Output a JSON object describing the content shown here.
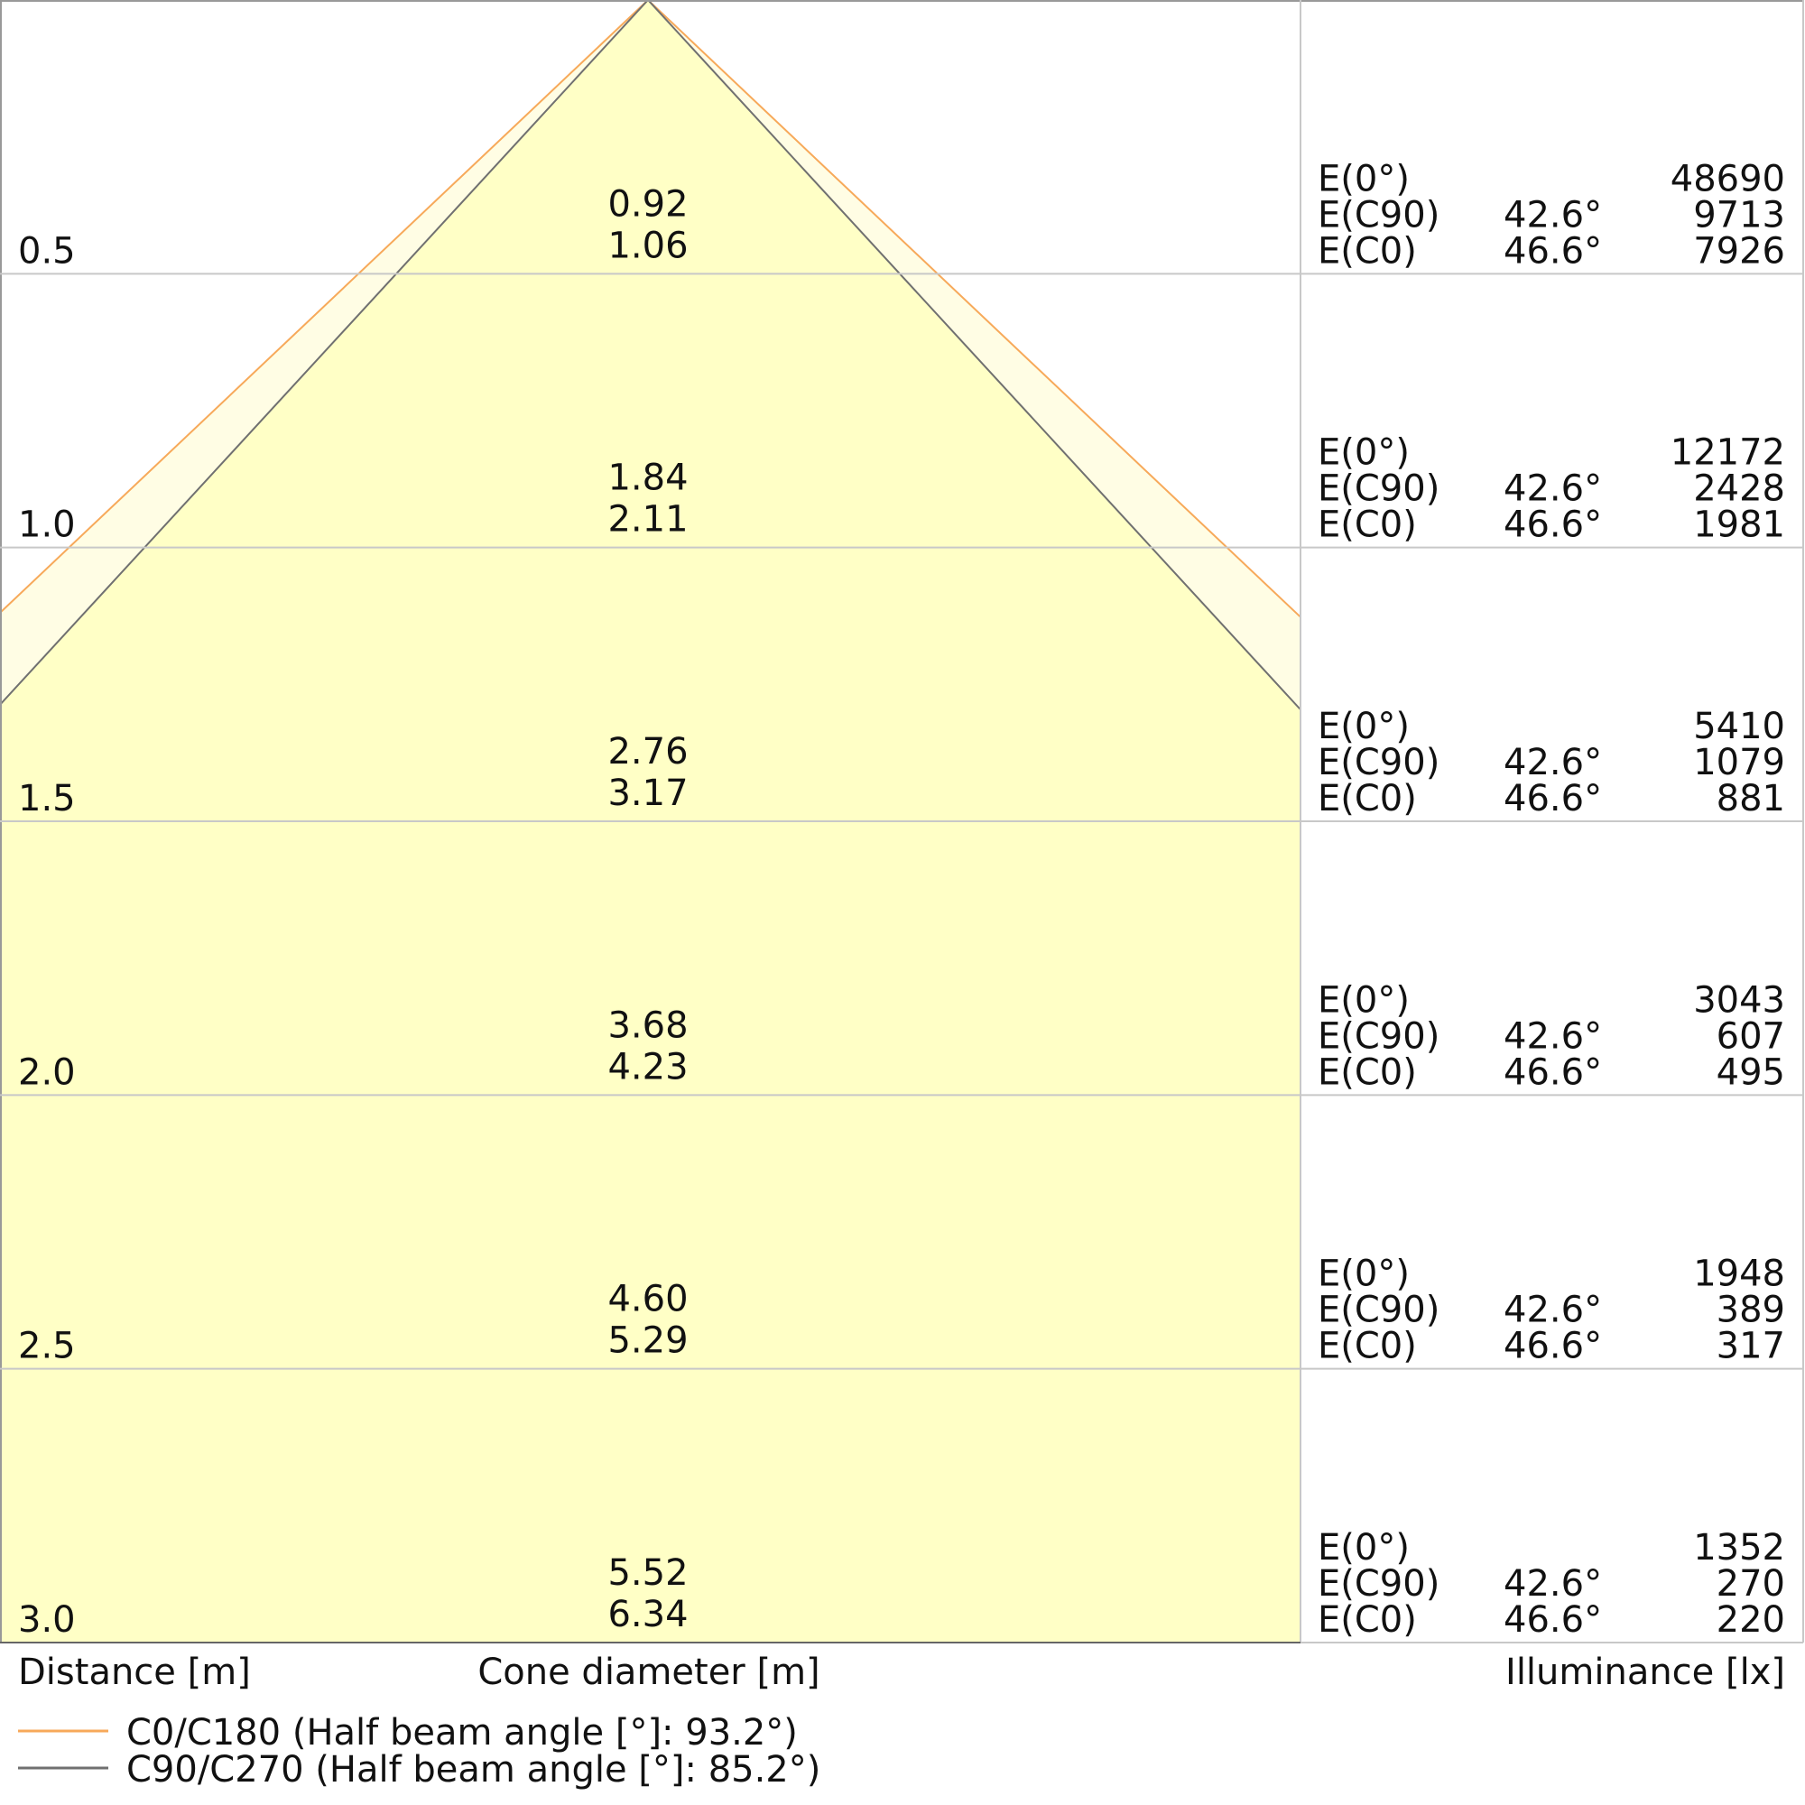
{
  "chart_data": {
    "type": "cone-diagram",
    "xlabel_left": "Distance [m]",
    "xlabel_center": "Cone diameter [m]",
    "xlabel_right": "Illuminance [lx]",
    "distance_range": [
      0,
      3.0
    ],
    "distances": [
      "0.5",
      "1.0",
      "1.5",
      "2.0",
      "2.5",
      "3.0"
    ],
    "rows": [
      {
        "distance": "0.5",
        "diam_c90": "0.92",
        "diam_c0": "1.06",
        "e0": "48690",
        "ec90": "9713",
        "ec0": "7926"
      },
      {
        "distance": "1.0",
        "diam_c90": "1.84",
        "diam_c0": "2.11",
        "e0": "12172",
        "ec90": "2428",
        "ec0": "1981"
      },
      {
        "distance": "1.5",
        "diam_c90": "2.76",
        "diam_c0": "3.17",
        "e0": "5410",
        "ec90": "1079",
        "ec0": "881"
      },
      {
        "distance": "2.0",
        "diam_c90": "3.68",
        "diam_c0": "4.23",
        "e0": "3043",
        "ec90": "607",
        "ec0": "495"
      },
      {
        "distance": "2.5",
        "diam_c90": "4.60",
        "diam_c0": "5.29",
        "e0": "1948",
        "ec90": "389",
        "ec0": "317"
      },
      {
        "distance": "3.0",
        "diam_c90": "5.52",
        "diam_c0": "6.34",
        "e0": "1352",
        "ec90": "270",
        "ec0": "220"
      }
    ],
    "row_labels": {
      "e0": "E(0°)",
      "ec90": "E(C90)",
      "ec0": "E(C0)"
    },
    "angles": {
      "ec90": "42.6°",
      "ec0": "46.6°"
    },
    "half_angles_deg": {
      "c0": 46.6,
      "c90": 42.6
    },
    "series": [
      {
        "name": "C0/C180 (Half beam angle [°]: 93.2°)",
        "color": "#f7a95a"
      },
      {
        "name": "C90/C270 (Half beam angle [°]: 85.2°)",
        "color": "#707070"
      }
    ],
    "colors": {
      "fill_inner": "#ffffc6",
      "fill_outer": "#fffde4",
      "grid": "#c8c8c8"
    }
  }
}
